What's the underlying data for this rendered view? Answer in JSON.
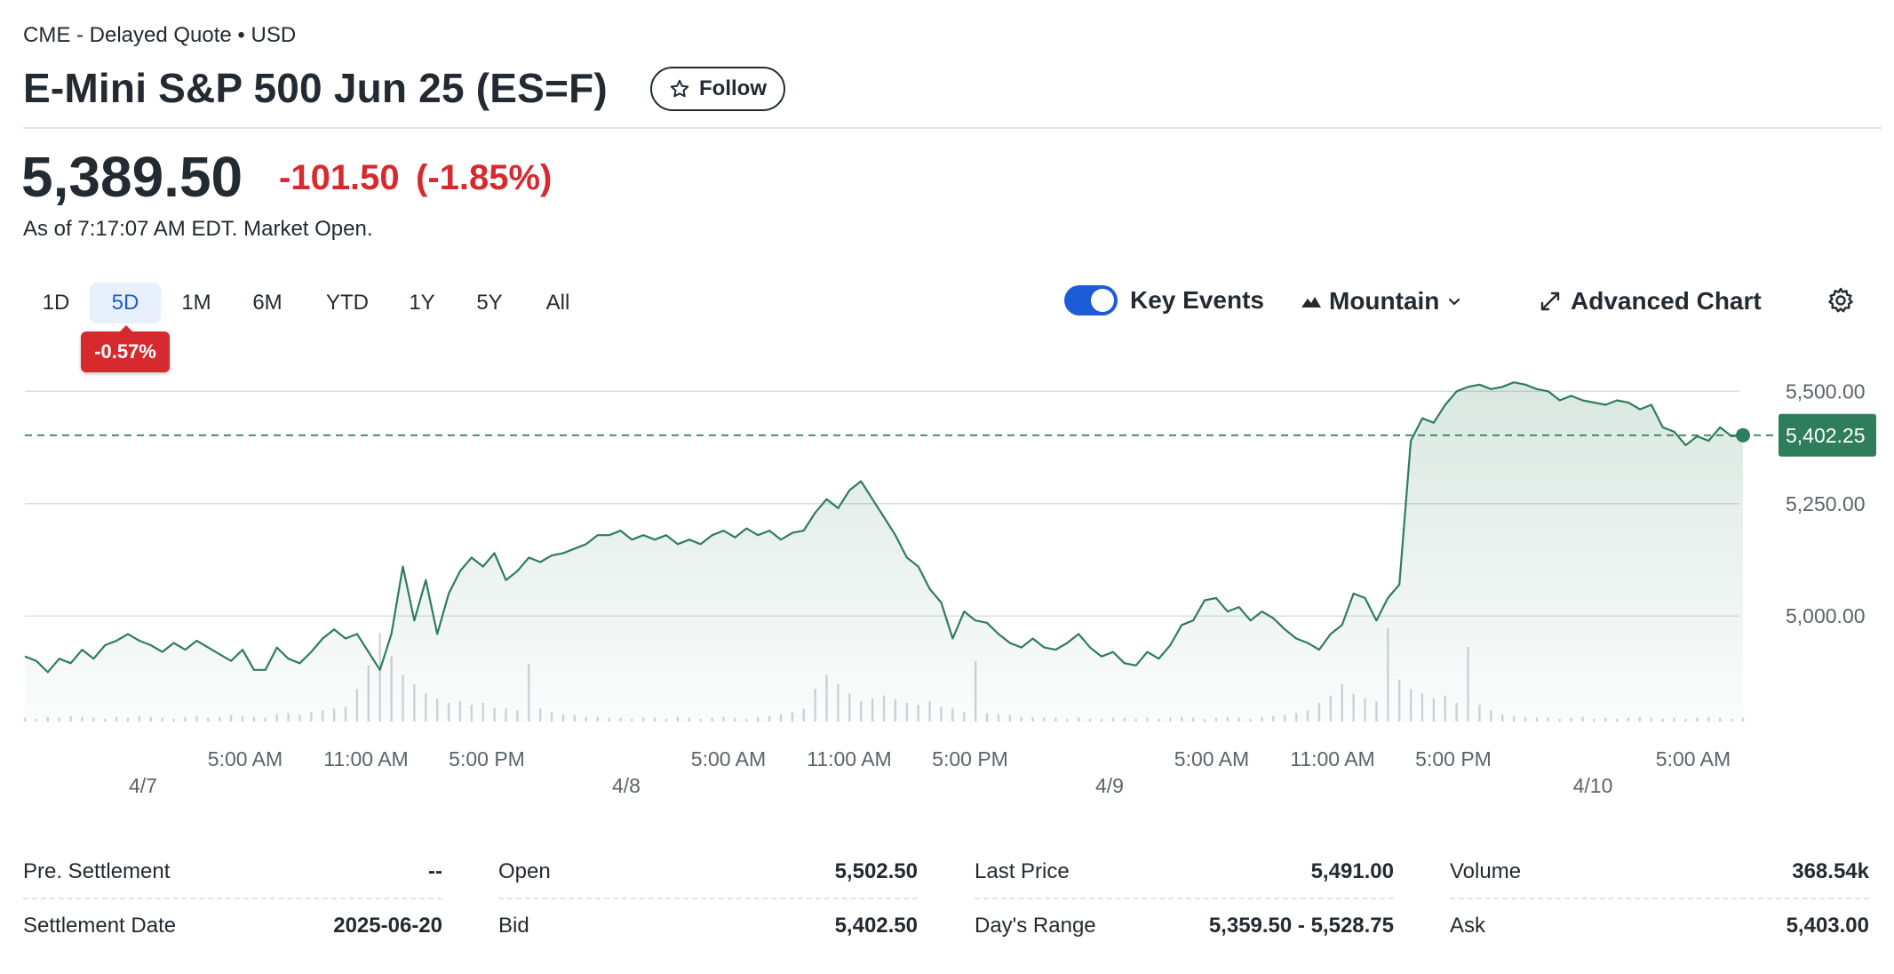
{
  "header": {
    "exchange": "CME - Delayed Quote • USD",
    "title": "E-Mini S&P 500 Jun 25 (ES=F)",
    "follow_label": "Follow"
  },
  "quote": {
    "price": "5,389.50",
    "change": "-101.50",
    "change_pct": "(-1.85%)",
    "as_of": "As of 7:17:07 AM EDT. Market Open."
  },
  "ranges": {
    "tabs": [
      "1D",
      "5D",
      "1M",
      "6M",
      "YTD",
      "1Y",
      "5Y",
      "All"
    ],
    "active": "5D",
    "range_change": "-0.57%"
  },
  "controls": {
    "key_events_label": "Key Events",
    "key_events_on": true,
    "chart_type_label": "Mountain",
    "advanced_chart_label": "Advanced Chart"
  },
  "colors": {
    "line": "#2e7d5b",
    "fill": "#e3efe9",
    "negative": "#d72a2e",
    "accent": "#1e5bd6",
    "current_label_bg": "#2e7d5b"
  },
  "chart_data": {
    "type": "area",
    "y_ticks": [
      "5,500.00",
      "5,250.00",
      "5,000.00"
    ],
    "y_tick_values": [
      5500,
      5250,
      5000
    ],
    "ylim": [
      4765,
      5560
    ],
    "current_value": 5402.25,
    "current_label": "5,402.25",
    "x_time_labels": [
      "5:00 AM",
      "11:00 AM",
      "5:00 PM",
      "5:00 AM",
      "11:00 AM",
      "5:00 PM",
      "5:00 AM",
      "11:00 AM",
      "5:00 PM",
      "5:00 AM"
    ],
    "x_date_labels": [
      "4/7",
      "4/8",
      "4/9",
      "4/10"
    ],
    "values": [
      4910,
      4900,
      4875,
      4905,
      4895,
      4925,
      4905,
      4935,
      4945,
      4960,
      4945,
      4935,
      4920,
      4940,
      4925,
      4945,
      4930,
      4915,
      4900,
      4925,
      4880,
      4880,
      4930,
      4905,
      4895,
      4920,
      4950,
      4970,
      4950,
      4960,
      4920,
      4880,
      4960,
      5110,
      4990,
      5080,
      4960,
      5050,
      5100,
      5130,
      5110,
      5140,
      5080,
      5100,
      5130,
      5120,
      5135,
      5140,
      5150,
      5160,
      5180,
      5180,
      5190,
      5170,
      5180,
      5170,
      5180,
      5160,
      5170,
      5160,
      5180,
      5190,
      5175,
      5195,
      5180,
      5190,
      5170,
      5185,
      5190,
      5230,
      5260,
      5240,
      5280,
      5300,
      5260,
      5220,
      5180,
      5130,
      5110,
      5060,
      5030,
      4950,
      5010,
      4990,
      4985,
      4960,
      4940,
      4930,
      4950,
      4930,
      4925,
      4940,
      4960,
      4930,
      4910,
      4920,
      4895,
      4890,
      4920,
      4905,
      4935,
      4980,
      4990,
      5035,
      5040,
      5010,
      5020,
      4990,
      5010,
      4995,
      4970,
      4950,
      4940,
      4925,
      4960,
      4980,
      5050,
      5040,
      4990,
      5040,
      5070,
      5390,
      5440,
      5430,
      5470,
      5500,
      5510,
      5515,
      5505,
      5510,
      5520,
      5515,
      5505,
      5500,
      5480,
      5490,
      5480,
      5475,
      5470,
      5480,
      5475,
      5460,
      5470,
      5420,
      5410,
      5380,
      5400,
      5390,
      5420,
      5400,
      5402.25
    ],
    "volume": [
      4,
      3,
      5,
      4,
      6,
      5,
      4,
      3,
      5,
      4,
      6,
      5,
      4,
      3,
      5,
      6,
      4,
      5,
      7,
      6,
      5,
      4,
      8,
      9,
      7,
      10,
      12,
      14,
      16,
      35,
      60,
      95,
      70,
      50,
      40,
      30,
      25,
      20,
      22,
      18,
      20,
      15,
      14,
      12,
      62,
      14,
      10,
      8,
      7,
      5,
      5,
      4,
      4,
      3,
      4,
      4,
      3,
      5,
      4,
      3,
      4,
      5,
      4,
      3,
      5,
      6,
      8,
      10,
      14,
      35,
      50,
      40,
      30,
      22,
      25,
      28,
      24,
      20,
      18,
      22,
      16,
      14,
      10,
      65,
      9,
      8,
      7,
      5,
      5,
      4,
      4,
      3,
      4,
      3,
      3,
      4,
      4,
      3,
      4,
      3,
      4,
      5,
      4,
      3,
      4,
      5,
      4,
      3,
      5,
      6,
      7,
      9,
      12,
      20,
      28,
      40,
      30,
      25,
      22,
      100,
      45,
      35,
      30,
      25,
      28,
      20,
      80,
      18,
      12,
      8,
      6,
      5,
      4,
      4,
      3,
      4,
      5,
      3,
      4,
      3,
      4,
      5,
      4,
      3,
      4,
      3,
      4,
      5,
      4,
      3,
      4
    ]
  },
  "stats": [
    [
      {
        "label": "Pre. Settlement",
        "value": "--"
      },
      {
        "label": "Settlement Date",
        "value": "2025-06-20"
      }
    ],
    [
      {
        "label": "Open",
        "value": "5,502.50"
      },
      {
        "label": "Bid",
        "value": "5,402.50"
      }
    ],
    [
      {
        "label": "Last Price",
        "value": "5,491.00"
      },
      {
        "label": "Day's Range",
        "value": "5,359.50 - 5,528.75"
      }
    ],
    [
      {
        "label": "Volume",
        "value": "368.54k"
      },
      {
        "label": "Ask",
        "value": "5,403.00"
      }
    ]
  ]
}
